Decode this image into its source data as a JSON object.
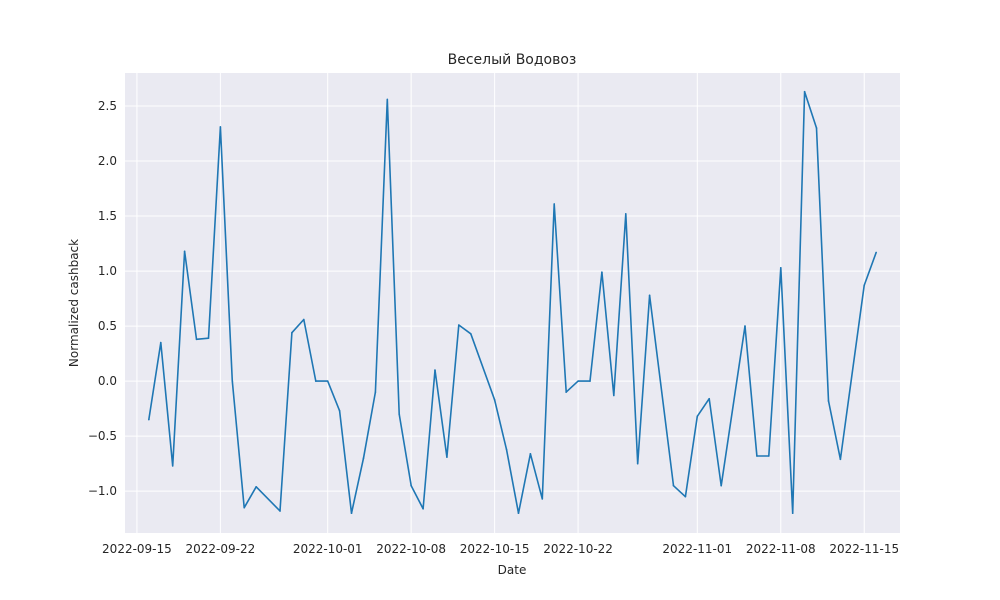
{
  "chart_data": {
    "type": "line",
    "title": "Веселый Водовоз",
    "xlabel": "Date",
    "ylabel": "Normalized cashback",
    "x_tick_labels": [
      "2022-09-15",
      "2022-09-22",
      "2022-10-01",
      "2022-10-08",
      "2022-10-15",
      "2022-10-22",
      "2022-11-01",
      "2022-11-08",
      "2022-11-15"
    ],
    "y_tick_labels": [
      "−1.0",
      "−0.5",
      "0.0",
      "0.5",
      "1.0",
      "1.5",
      "2.0",
      "2.5"
    ],
    "y_ticks": [
      -1.0,
      -0.5,
      0.0,
      0.5,
      1.0,
      1.5,
      2.0,
      2.5
    ],
    "xlim": [
      "2022-09-14",
      "2022-11-18"
    ],
    "ylim": [
      -1.38,
      2.8
    ],
    "grid": true,
    "colors": {
      "background": "#eaeaf2",
      "line": "#1f77b4",
      "grid": "#ffffff"
    },
    "series": [
      {
        "x": [
          "2022-09-16",
          "2022-09-17",
          "2022-09-18",
          "2022-09-19",
          "2022-09-20",
          "2022-09-21",
          "2022-09-22",
          "2022-09-23",
          "2022-09-24",
          "2022-09-25",
          "2022-09-27",
          "2022-09-28",
          "2022-09-29",
          "2022-09-30",
          "2022-10-01",
          "2022-10-02",
          "2022-10-03",
          "2022-10-04",
          "2022-10-05",
          "2022-10-06",
          "2022-10-07",
          "2022-10-08",
          "2022-10-09",
          "2022-10-10",
          "2022-10-11",
          "2022-10-12",
          "2022-10-13",
          "2022-10-15",
          "2022-10-16",
          "2022-10-17",
          "2022-10-18",
          "2022-10-19",
          "2022-10-20",
          "2022-10-21",
          "2022-10-22",
          "2022-10-23",
          "2022-10-24",
          "2022-10-25",
          "2022-10-26",
          "2022-10-27",
          "2022-10-28",
          "2022-10-30",
          "2022-10-31",
          "2022-11-01",
          "2022-11-02",
          "2022-11-03",
          "2022-11-05",
          "2022-11-06",
          "2022-11-07",
          "2022-11-08",
          "2022-11-09",
          "2022-11-10",
          "2022-11-11",
          "2022-11-12",
          "2022-11-13",
          "2022-11-15",
          "2022-11-16"
        ],
        "values": [
          -0.35,
          0.35,
          -0.77,
          1.18,
          0.38,
          0.39,
          2.31,
          0.0,
          -1.15,
          -0.96,
          -1.18,
          0.44,
          0.56,
          0.0,
          0.0,
          -0.27,
          -1.2,
          -0.7,
          -0.1,
          2.56,
          -0.3,
          -0.95,
          -1.16,
          0.1,
          -0.69,
          0.51,
          0.43,
          -0.17,
          -0.62,
          -1.2,
          -0.66,
          -1.07,
          1.61,
          -0.1,
          0.0,
          0.0,
          0.99,
          -0.13,
          1.52,
          -0.75,
          0.78,
          -0.95,
          -1.05,
          -0.32,
          -0.16,
          -0.95,
          0.5,
          -0.68,
          -0.68,
          1.03,
          -1.2,
          2.63,
          2.3,
          -0.18,
          -0.71,
          0.87,
          1.17
        ]
      }
    ]
  }
}
